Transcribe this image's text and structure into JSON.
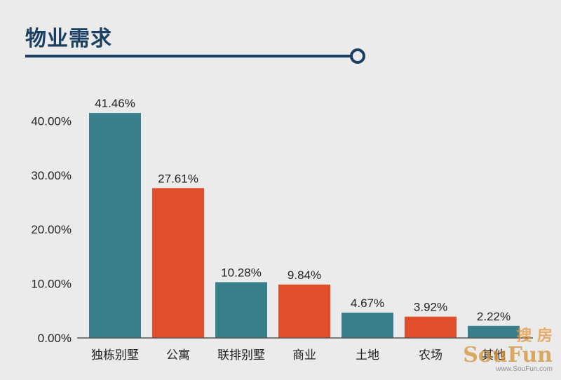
{
  "header": {
    "title": "物业需求"
  },
  "chart_data": {
    "type": "bar",
    "title": "物业需求",
    "categories": [
      "独栋别墅",
      "公寓",
      "联排别墅",
      "商业",
      "土地",
      "农场",
      "其他"
    ],
    "values": [
      41.46,
      27.61,
      10.28,
      9.84,
      4.67,
      3.92,
      2.22
    ],
    "data_labels": [
      "41.46%",
      "27.61%",
      "10.28%",
      "9.84%",
      "4.67%",
      "3.92%",
      "2.22%"
    ],
    "bar_colors": [
      "#3a7f8c",
      "#e04e2b",
      "#3a7f8c",
      "#e04e2b",
      "#3a7f8c",
      "#e04e2b",
      "#3a7f8c"
    ],
    "y_ticks": [
      0,
      10,
      20,
      30,
      40
    ],
    "y_tick_labels": [
      "0.00%",
      "10.00%",
      "20.00%",
      "30.00%",
      "40.00%"
    ],
    "ylim": [
      0,
      45
    ],
    "xlabel": "",
    "ylabel": "",
    "grid": false,
    "legend": "none"
  },
  "watermark": {
    "chinese": "搜 房",
    "brand": "SouFun",
    "url": "www.SouFun.com"
  },
  "colors": {
    "title": "#1b3f63",
    "teal": "#3a7f8c",
    "orange": "#e04e2b",
    "background": "#ebebeb"
  }
}
